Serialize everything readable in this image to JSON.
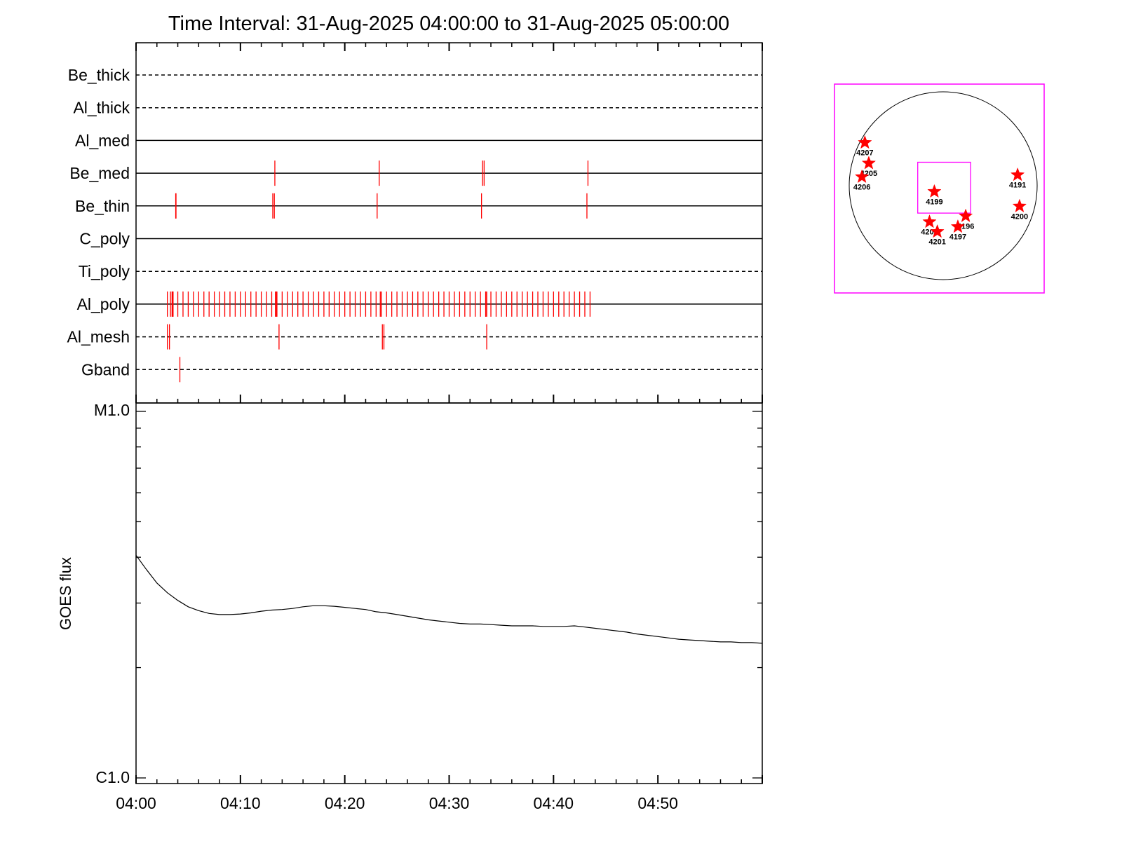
{
  "colors": {
    "axis": "#000000",
    "event": "#ff0000",
    "box": "#ff00ff",
    "star": "#ff0000",
    "goes_curve": "#000000"
  },
  "chart_data": [
    {
      "type": "event-timeline",
      "title": "Time Interval: 31-Aug-2025 04:00:00 to 31-Aug-2025 05:00:00",
      "x_range_minutes": [
        0,
        60
      ],
      "x_ticks": [
        "04:00",
        "04:10",
        "04:20",
        "04:30",
        "04:40",
        "04:50"
      ],
      "x_tick_minutes": [
        0,
        10,
        20,
        30,
        40,
        50
      ],
      "rows": [
        {
          "name": "Be_thick",
          "line": "dashed",
          "events": []
        },
        {
          "name": "Al_thick",
          "line": "dashed",
          "events": []
        },
        {
          "name": "Al_med",
          "line": "solid",
          "events": []
        },
        {
          "name": "Be_med",
          "line": "solid",
          "events": [
            13.3,
            23.3,
            33.2,
            33.35,
            43.3
          ]
        },
        {
          "name": "Be_thin",
          "line": "solid",
          "events": [
            3.8,
            3.83,
            13.1,
            13.25,
            23.1,
            33.1,
            43.2
          ]
        },
        {
          "name": "C_poly",
          "line": "solid",
          "events": []
        },
        {
          "name": "Ti_poly",
          "line": "dashed",
          "events": []
        },
        {
          "name": "Al_poly",
          "line": "solid",
          "event_train": {
            "start": 3.0,
            "end": 43.5,
            "step": 0.5
          },
          "events": [
            3.3,
            3.45,
            3.55,
            13.35,
            13.45,
            23.4,
            33.5,
            33.6
          ]
        },
        {
          "name": "Al_mesh",
          "line": "dashed",
          "events": [
            3.0,
            3.2,
            13.7,
            23.6,
            23.75,
            33.6
          ]
        },
        {
          "name": "Gband",
          "line": "dashed",
          "events": [
            4.2
          ]
        }
      ]
    },
    {
      "type": "line",
      "ylabel": "GOES flux",
      "y_scale": "log",
      "y_ticks": [
        "M1.0",
        "C1.0"
      ],
      "ylim": [
        1e-06,
        1e-05
      ],
      "x_range_minutes": [
        0,
        60
      ],
      "x_ticks": [
        "04:00",
        "04:10",
        "04:20",
        "04:30",
        "04:40",
        "04:50"
      ],
      "series": [
        {
          "x": [
            0,
            1,
            2,
            3,
            4,
            5,
            6,
            7,
            8,
            9,
            10,
            11,
            12,
            13,
            14,
            15,
            16,
            17,
            18,
            19,
            20,
            21,
            22,
            23,
            24,
            25,
            26,
            27,
            28,
            29,
            30,
            31,
            32,
            33,
            34,
            35,
            36,
            37,
            38,
            39,
            40,
            41,
            42,
            43,
            44,
            45,
            46,
            47,
            48,
            49,
            50,
            51,
            52,
            53,
            54,
            55,
            56,
            57,
            58,
            59,
            60
          ],
          "y": [
            4.05e-06,
            3.7e-06,
            3.4e-06,
            3.2e-06,
            3.05e-06,
            2.93e-06,
            2.86e-06,
            2.81e-06,
            2.79e-06,
            2.79e-06,
            2.8e-06,
            2.82e-06,
            2.85e-06,
            2.87e-06,
            2.88e-06,
            2.9e-06,
            2.93e-06,
            2.95e-06,
            2.95e-06,
            2.94e-06,
            2.92e-06,
            2.9e-06,
            2.88e-06,
            2.84e-06,
            2.82e-06,
            2.79e-06,
            2.76e-06,
            2.73e-06,
            2.7e-06,
            2.68e-06,
            2.66e-06,
            2.64e-06,
            2.63e-06,
            2.63e-06,
            2.62e-06,
            2.61e-06,
            2.6e-06,
            2.6e-06,
            2.6e-06,
            2.59e-06,
            2.59e-06,
            2.59e-06,
            2.6e-06,
            2.58e-06,
            2.56e-06,
            2.54e-06,
            2.52e-06,
            2.5e-06,
            2.47e-06,
            2.45e-06,
            2.43e-06,
            2.41e-06,
            2.39e-06,
            2.38e-06,
            2.37e-06,
            2.36e-06,
            2.35e-06,
            2.35e-06,
            2.34e-06,
            2.34e-06,
            2.33e-06
          ]
        }
      ]
    },
    {
      "type": "scatter",
      "description_role": "solar-disk-map",
      "x_range_arcsec": [
        -1100,
        1100
      ],
      "y_range_arcsec": [
        -1100,
        1100
      ],
      "disk_radius_arcsec": 960,
      "fov_box_arcsec": {
        "x": [
          -260,
          280
        ],
        "y": [
          -280,
          240
        ]
      },
      "points": [
        {
          "label": "4207",
          "x": -800,
          "y": 440
        },
        {
          "label": "4205",
          "x": -760,
          "y": 230
        },
        {
          "label": "4206",
          "x": -830,
          "y": 90
        },
        {
          "label": "4199",
          "x": -90,
          "y": -60
        },
        {
          "label": "4191",
          "x": 760,
          "y": 110
        },
        {
          "label": "4200",
          "x": 780,
          "y": -210
        },
        {
          "label": "4196",
          "x": 230,
          "y": -310
        },
        {
          "label": "4202",
          "x": -140,
          "y": -370
        },
        {
          "label": "4197",
          "x": 150,
          "y": -420
        },
        {
          "label": "4201",
          "x": -60,
          "y": -470
        }
      ]
    }
  ]
}
